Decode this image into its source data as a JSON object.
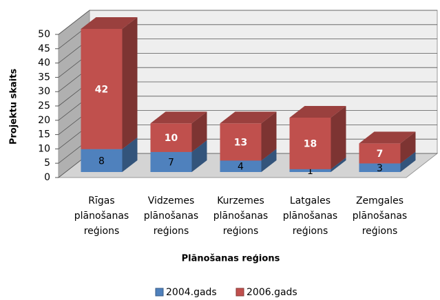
{
  "chart_data": {
    "type": "bar3d_stacked",
    "x_label": "Plānošanas reģions",
    "y_label": "Projektu skaits",
    "categories": [
      "Rīgas plānošanas reģions",
      "Vidzemes plānošanas reģions",
      "Kurzemes plānošanas reģions",
      "Latgales plānošanas reģions",
      "Zemgales plānošanas reģions"
    ],
    "series": [
      {
        "name": "2004.gads",
        "color": "#4f81bd",
        "values": [
          8,
          7,
          4,
          1,
          3
        ]
      },
      {
        "name": "2006.gads",
        "color": "#c0504d",
        "values": [
          42,
          10,
          13,
          18,
          7
        ]
      }
    ],
    "ylim": [
      0,
      50
    ],
    "yticks": [
      0,
      5,
      10,
      15,
      20,
      25,
      30,
      35,
      40,
      45,
      50
    ],
    "grid": true,
    "legend": "bottom"
  }
}
